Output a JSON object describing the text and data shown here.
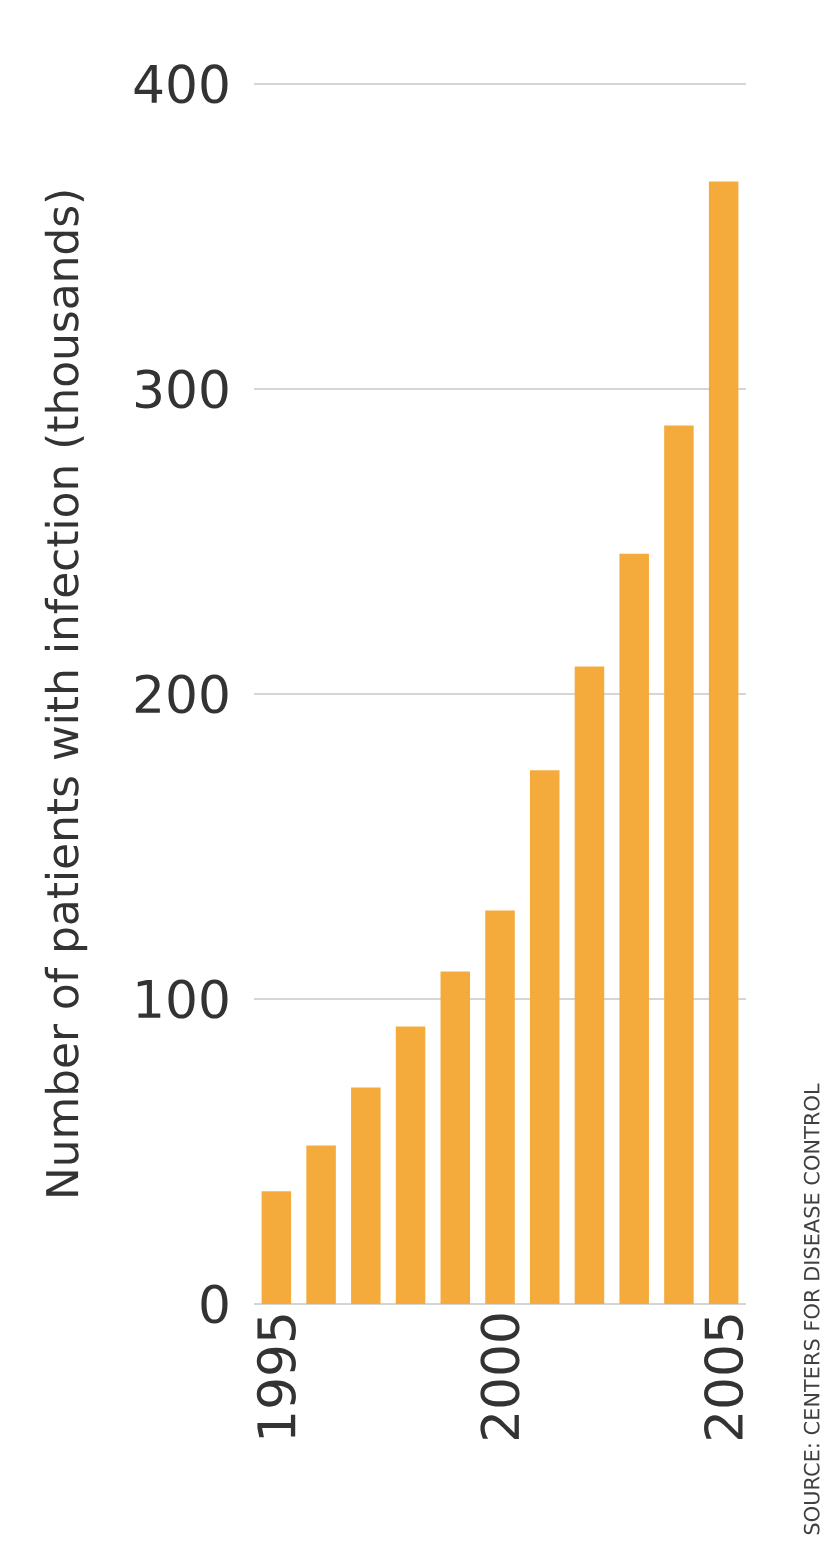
{
  "chart_data": {
    "type": "bar",
    "ylabel": "Number of patients with infection (thousands)",
    "x": [
      1995,
      1996,
      1997,
      1998,
      1999,
      2000,
      2001,
      2002,
      2003,
      2004,
      2005
    ],
    "values": [
      37,
      52,
      71,
      91,
      109,
      129,
      175,
      209,
      246,
      288,
      368
    ],
    "color": "#f5ab3c",
    "xlim": [
      1994.5,
      2005.5
    ],
    "ylim": [
      0,
      400
    ],
    "xticks": [
      1995,
      2000,
      2005
    ],
    "yticks": [
      0,
      100,
      200,
      300,
      400
    ],
    "grid": "y",
    "annotations": [
      "SOURCE: CENTERS FOR DISEASE CONTROL"
    ]
  }
}
